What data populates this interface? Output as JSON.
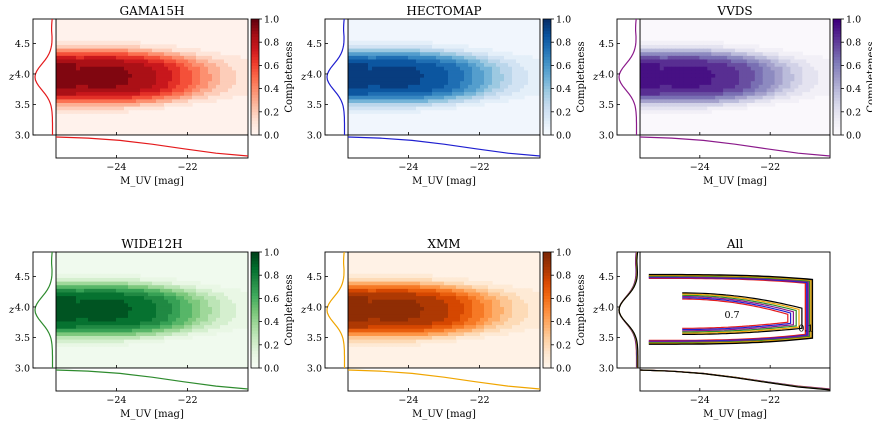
{
  "chart_data": [
    {
      "type": "heatmap",
      "title": "GAMA15H",
      "panel": "gama15h",
      "xlabel": "M_UV [mag]",
      "ylabel": "z",
      "xlim": [
        -25.7,
        -20.3
      ],
      "ylim": [
        3.0,
        4.9
      ],
      "colorbar_label": "Completeness",
      "colorbar_range": [
        0.0,
        1.0
      ],
      "colorbar_ticks": [
        "0.0",
        "0.2",
        "0.4",
        "0.6",
        "0.8",
        "1.0"
      ],
      "colormap": "Reds",
      "x_ticks": [
        -24,
        -22
      ],
      "x_tick_labels": [
        "−24",
        "−22"
      ],
      "y_ticks": [
        3.0,
        3.5,
        4.0,
        4.5
      ],
      "y_tick_labels": [
        "3.0",
        "3.5",
        "4.0",
        "4.5"
      ],
      "line_color": "#e41a1c",
      "marginal_x_profile": [
        1.0,
        0.94,
        0.82,
        0.62,
        0.38,
        0.15,
        0.0
      ],
      "marginal_z_profile": [
        0.0,
        0.1,
        0.7,
        1.0,
        0.75,
        0.2,
        0.05,
        0.0
      ]
    },
    {
      "type": "heatmap",
      "title": "HECTOMAP",
      "panel": "hectomap",
      "xlabel": "M_UV [mag]",
      "ylabel": "z",
      "xlim": [
        -25.7,
        -20.3
      ],
      "ylim": [
        3.0,
        4.9
      ],
      "colorbar_label": "Completeness",
      "colorbar_range": [
        0.0,
        1.0
      ],
      "colorbar_ticks": [
        "0.0",
        "0.2",
        "0.4",
        "0.6",
        "0.8",
        "1.0"
      ],
      "colormap": "Blues",
      "x_ticks": [
        -24,
        -22
      ],
      "x_tick_labels": [
        "−24",
        "−22"
      ],
      "y_ticks": [
        3.0,
        3.5,
        4.0,
        4.5
      ],
      "y_tick_labels": [
        "3.0",
        "3.5",
        "4.0",
        "4.5"
      ],
      "line_color": "#1f1fd0",
      "marginal_x_profile": [
        1.0,
        0.94,
        0.82,
        0.62,
        0.38,
        0.15,
        0.0
      ],
      "marginal_z_profile": [
        0.0,
        0.1,
        0.7,
        1.0,
        0.75,
        0.2,
        0.05,
        0.0
      ]
    },
    {
      "type": "heatmap",
      "title": "VVDS",
      "panel": "vvds",
      "xlabel": "M_UV [mag]",
      "ylabel": "z",
      "xlim": [
        -25.7,
        -20.3
      ],
      "ylim": [
        3.0,
        4.9
      ],
      "colorbar_label": "Completeness",
      "colorbar_range": [
        0.0,
        1.0
      ],
      "colorbar_ticks": [
        "0.0",
        "0.2",
        "0.4",
        "0.6",
        "0.8",
        "1.0"
      ],
      "colormap": "Purples",
      "x_ticks": [
        -24,
        -22
      ],
      "x_tick_labels": [
        "−24",
        "−22"
      ],
      "y_ticks": [
        3.0,
        3.5,
        4.0,
        4.5
      ],
      "y_tick_labels": [
        "3.0",
        "3.5",
        "4.0",
        "4.5"
      ],
      "line_color": "#8b1a8b",
      "marginal_x_profile": [
        1.0,
        0.94,
        0.82,
        0.62,
        0.38,
        0.15,
        0.0
      ],
      "marginal_z_profile": [
        0.0,
        0.1,
        0.7,
        1.0,
        0.75,
        0.2,
        0.05,
        0.0
      ]
    },
    {
      "type": "heatmap",
      "title": "WIDE12H",
      "panel": "wide12h",
      "xlabel": "M_UV [mag]",
      "ylabel": "z",
      "xlim": [
        -25.7,
        -20.3
      ],
      "ylim": [
        3.0,
        4.9
      ],
      "colorbar_label": "Completeness",
      "colorbar_range": [
        0.0,
        1.0
      ],
      "colorbar_ticks": [
        "0.0",
        "0.2",
        "0.4",
        "0.6",
        "0.8",
        "1.0"
      ],
      "colormap": "Greens",
      "x_ticks": [
        -24,
        -22
      ],
      "x_tick_labels": [
        "−24",
        "−22"
      ],
      "y_ticks": [
        3.0,
        3.5,
        4.0,
        4.5
      ],
      "y_tick_labels": [
        "3.0",
        "3.5",
        "4.0",
        "4.5"
      ],
      "line_color": "#2e8b2e",
      "marginal_x_profile": [
        1.0,
        0.94,
        0.82,
        0.62,
        0.38,
        0.15,
        0.0
      ],
      "marginal_z_profile": [
        0.0,
        0.1,
        0.7,
        1.0,
        0.75,
        0.2,
        0.05,
        0.0
      ]
    },
    {
      "type": "heatmap",
      "title": "XMM",
      "panel": "xmm",
      "xlabel": "M_UV [mag]",
      "ylabel": "z",
      "xlim": [
        -25.7,
        -20.3
      ],
      "ylim": [
        3.0,
        4.9
      ],
      "colorbar_label": "Completeness",
      "colorbar_range": [
        0.0,
        1.0
      ],
      "colorbar_ticks": [
        "0.0",
        "0.2",
        "0.4",
        "0.6",
        "0.8",
        "1.0"
      ],
      "colormap": "Oranges",
      "x_ticks": [
        -24,
        -22
      ],
      "x_tick_labels": [
        "−24",
        "−22"
      ],
      "y_ticks": [
        3.0,
        3.5,
        4.0,
        4.5
      ],
      "y_tick_labels": [
        "3.0",
        "3.5",
        "4.0",
        "4.5"
      ],
      "line_color": "#f0a500",
      "marginal_x_profile": [
        1.0,
        0.94,
        0.82,
        0.62,
        0.38,
        0.15,
        0.0
      ],
      "marginal_z_profile": [
        0.0,
        0.1,
        0.7,
        1.0,
        0.75,
        0.2,
        0.05,
        0.0
      ]
    },
    {
      "type": "line",
      "title": "All",
      "panel": "all",
      "xlabel": "M_UV [mag]",
      "ylabel": "z",
      "xlim": [
        -25.7,
        -20.3
      ],
      "ylim": [
        3.0,
        4.9
      ],
      "x_ticks": [
        -24,
        -22
      ],
      "x_tick_labels": [
        "−24",
        "−22"
      ],
      "y_ticks": [
        3.0,
        3.5,
        4.0,
        4.5
      ],
      "y_tick_labels": [
        "3.0",
        "3.5",
        "4.0",
        "4.5"
      ],
      "contour_levels": [
        "0.1",
        "0.7"
      ],
      "series": [
        {
          "name": "GAMA15H",
          "color": "#e41a1c"
        },
        {
          "name": "HECTOMAP",
          "color": "#1f1fd0"
        },
        {
          "name": "VVDS",
          "color": "#8b1a8b"
        },
        {
          "name": "WIDE12H",
          "color": "#2e8b2e"
        },
        {
          "name": "XMM",
          "color": "#f0a500"
        },
        {
          "name": "All",
          "color": "#000000"
        }
      ]
    }
  ]
}
